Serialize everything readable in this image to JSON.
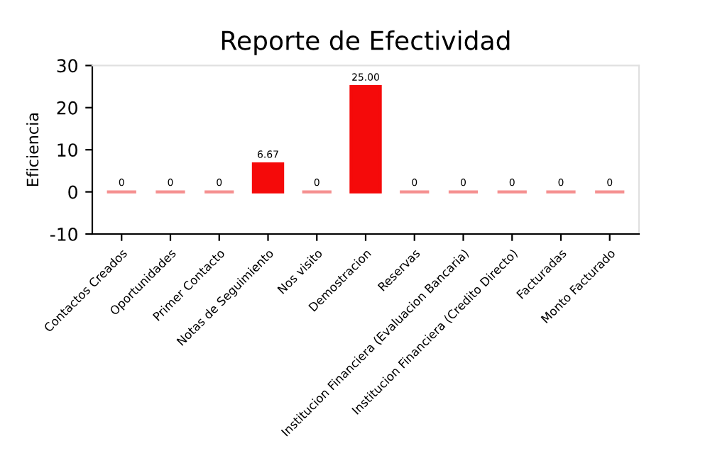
{
  "chart_data": {
    "type": "bar",
    "title": "Reporte de Efectividad",
    "ylabel": "Eficiencia",
    "categories": [
      "Contactos Creados",
      "Oportunidades",
      "Primer Contacto",
      "Notas de Seguimiento",
      "Nos visito",
      "Demostracion",
      "Reservas",
      "Institucion Financiera (Evaluacion Bancaria)",
      "Institucion Financiera (Credito Directo)",
      "Facturadas",
      "Monto Facturado"
    ],
    "values": [
      0,
      0,
      0,
      6.67,
      0,
      25,
      0,
      0,
      0,
      0,
      0
    ],
    "value_labels": [
      "0",
      "0",
      "0",
      "6.67",
      "0",
      "25.00",
      "0",
      "0",
      "0",
      "0",
      "0"
    ],
    "colors": [
      "#f59090",
      "#f59090",
      "#f59090",
      "#f50a0a",
      "#f59090",
      "#f50a0a",
      "#f59090",
      "#f59090",
      "#f59090",
      "#f59090",
      "#f59090"
    ],
    "ylim": [
      -10,
      30
    ],
    "yticks": [
      -10,
      0,
      10,
      20,
      30
    ],
    "grid": false,
    "legend": false
  }
}
